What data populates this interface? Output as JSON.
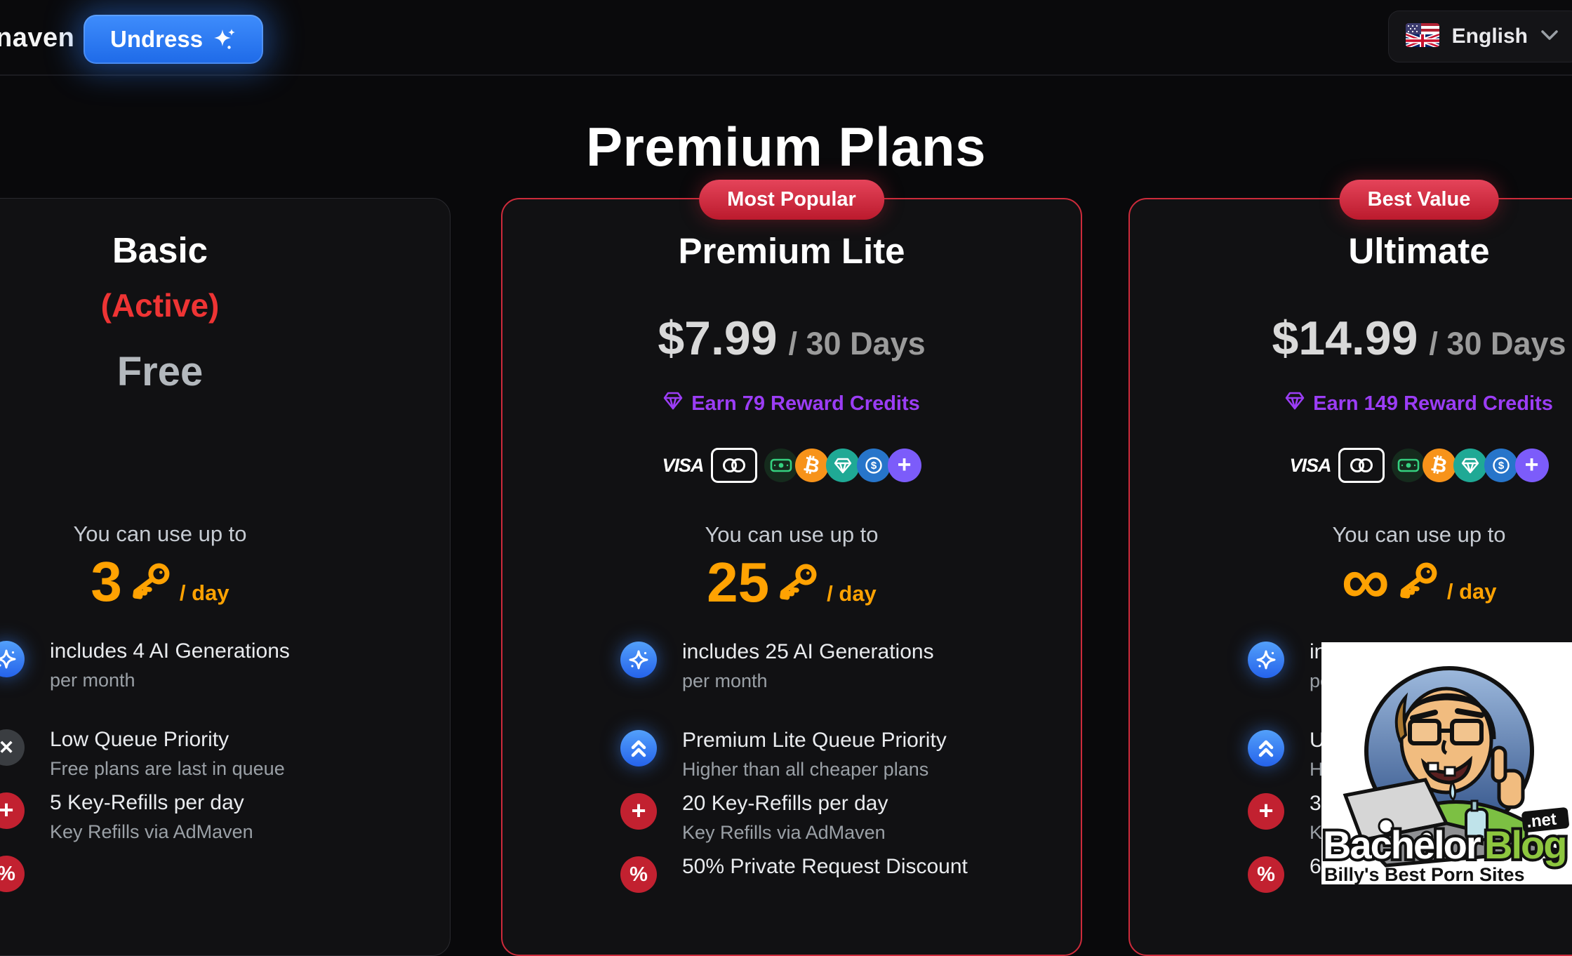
{
  "nav": {
    "logo_text": "naven",
    "undress_button_label": "Undress",
    "language_label": "English"
  },
  "page_title": "Premium Plans",
  "payment_methods": [
    "visa",
    "mastercard",
    "cash",
    "bitcoin",
    "gem",
    "coin",
    "more"
  ],
  "plans": [
    {
      "id": "basic",
      "badge": "",
      "name": "Basic",
      "status": "(Active)",
      "free_label": "Free",
      "reward": "",
      "show_payments": false,
      "usage": {
        "prefix": "You can use up to",
        "amount": "3",
        "suffix": "/ day"
      },
      "features": [
        {
          "icon": "sparkle",
          "color": "blue",
          "title": "includes 4 AI Generations",
          "subtitle": "per month"
        },
        {
          "icon": "x",
          "color": "gray",
          "title": "Low Queue Priority",
          "subtitle": "Free plans are last in queue"
        },
        {
          "icon": "plus",
          "color": "red",
          "title": "5 Key-Refills per day",
          "subtitle": "Key Refills via AdMaven"
        },
        {
          "icon": "percent",
          "color": "red",
          "title": "",
          "subtitle": ""
        }
      ]
    },
    {
      "id": "premium-lite",
      "badge": "Most Popular",
      "name": "Premium Lite",
      "price": "$7.99",
      "period": "/ 30 Days",
      "reward": "Earn 79 Reward Credits",
      "show_payments": true,
      "usage": {
        "prefix": "You can use up to",
        "amount": "25",
        "suffix": "/ day"
      },
      "features": [
        {
          "icon": "sparkle",
          "color": "blue",
          "title": "includes 25 AI Generations",
          "subtitle": "per month"
        },
        {
          "icon": "chevrons",
          "color": "blue",
          "title": "Premium Lite Queue Priority",
          "subtitle": "Higher than all cheaper plans"
        },
        {
          "icon": "plus",
          "color": "red",
          "title": "20 Key-Refills per day",
          "subtitle": "Key Refills via AdMaven"
        },
        {
          "icon": "percent",
          "color": "red",
          "title": "50% Private Request Discount",
          "subtitle": ""
        }
      ]
    },
    {
      "id": "ultimate",
      "badge": "Best Value",
      "name": "Ultimate",
      "price": "$14.99",
      "period": "/ 30 Days",
      "reward": "Earn 149 Reward Credits",
      "show_payments": true,
      "usage": {
        "prefix": "You can use up to",
        "amount": "∞",
        "suffix": "/ day"
      },
      "features": [
        {
          "icon": "sparkle",
          "color": "blue",
          "title": "inc",
          "subtitle": "pe"
        },
        {
          "icon": "chevrons",
          "color": "blue",
          "title": "Ul",
          "subtitle": "Hig"
        },
        {
          "icon": "plus",
          "color": "red",
          "title": "30",
          "subtitle": "Ke"
        },
        {
          "icon": "percent",
          "color": "red",
          "title": "60",
          "subtitle": ""
        }
      ]
    }
  ],
  "watermark": {
    "word1": "Bachelor",
    "word2": "Blog",
    "tld": ".net",
    "tagline": "Billy's Best Porn Sites"
  },
  "colors": {
    "background": "#09090b",
    "card_border_red": "#cd2b3b",
    "accent_blue": "#2f7df6",
    "accent_orange": "#ffa202",
    "accent_purple": "#9b3df5",
    "active_red": "#ee3434",
    "badge_red": "#c01b2c"
  }
}
